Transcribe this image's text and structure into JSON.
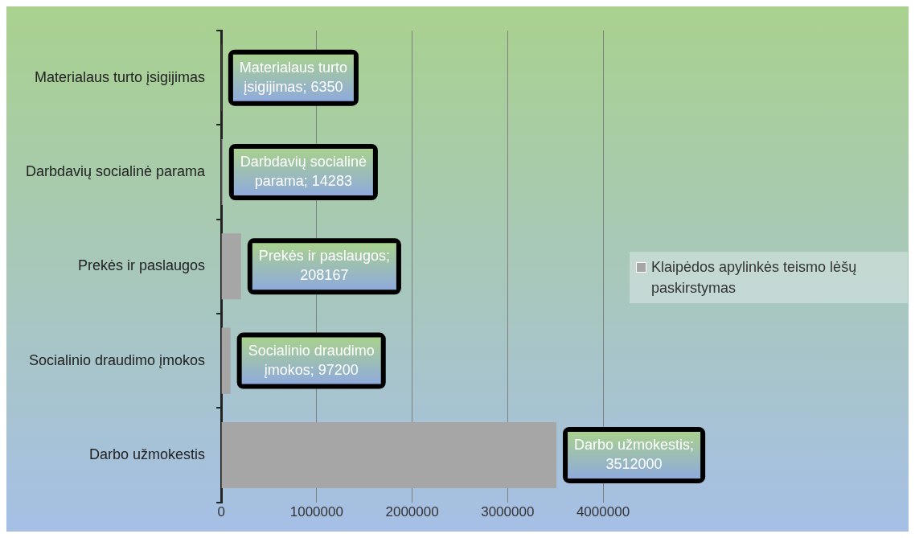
{
  "chart_data": {
    "type": "bar",
    "orientation": "horizontal",
    "categories": [
      "Materialaus turto įsigijimas",
      "Darbdavių socialinė parama",
      "Prekės ir paslaugos",
      "Socialinio draudimo įmokos",
      "Darbo užmokestis"
    ],
    "series": [
      {
        "name": "Klaipėdos apylinkės teismo lėšų paskirstymas",
        "color": "#a6a6a6",
        "values": [
          6350,
          14283,
          208167,
          97200,
          3512000
        ],
        "value_labels": [
          "Materialaus turto įsigijimas; 6350",
          "Darbdavių socialinė parama; 14283",
          "Prekės ir paslaugos; 208167",
          "Socialinio draudimo įmokos; 97200",
          "Darbo užmokestis; 3512000"
        ]
      }
    ],
    "xlim": [
      0,
      4000000
    ],
    "xticks": [
      0,
      1000000,
      2000000,
      3000000,
      4000000
    ],
    "grid": "x",
    "legend": "right"
  }
}
